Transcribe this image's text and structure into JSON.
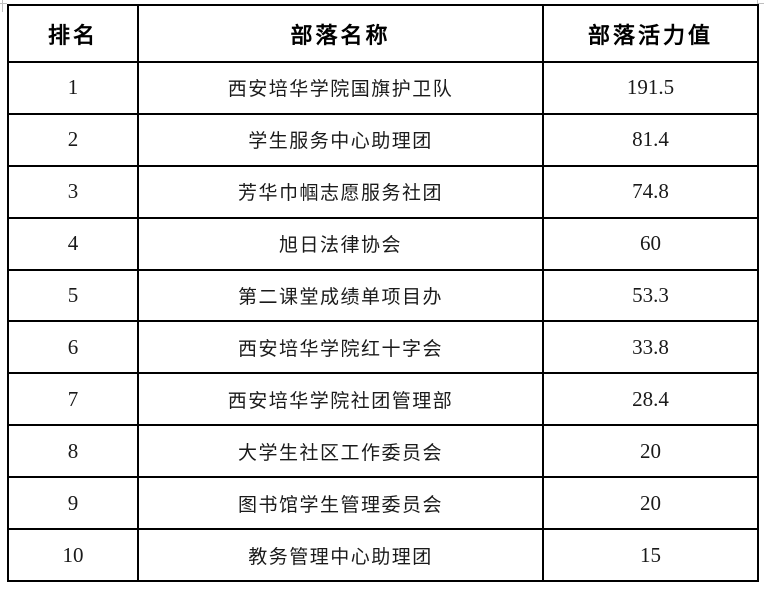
{
  "table": {
    "columns": [
      {
        "label": "排名"
      },
      {
        "label": "部落名称"
      },
      {
        "label": "部落活力值"
      }
    ],
    "rows": [
      {
        "rank": "1",
        "name": "西安培华学院国旗护卫队",
        "score": "191.5"
      },
      {
        "rank": "2",
        "name": "学生服务中心助理团",
        "score": "81.4"
      },
      {
        "rank": "3",
        "name": "芳华巾帼志愿服务社团",
        "score": "74.8"
      },
      {
        "rank": "4",
        "name": "旭日法律协会",
        "score": "60"
      },
      {
        "rank": "5",
        "name": "第二课堂成绩单项目办",
        "score": "53.3"
      },
      {
        "rank": "6",
        "name": "西安培华学院红十字会",
        "score": "33.8"
      },
      {
        "rank": "7",
        "name": "西安培华学院社团管理部",
        "score": "28.4"
      },
      {
        "rank": "8",
        "name": "大学生社区工作委员会",
        "score": "20"
      },
      {
        "rank": "9",
        "name": "图书馆学生管理委员会",
        "score": "20"
      },
      {
        "rank": "10",
        "name": "教务管理中心助理团",
        "score": "15"
      }
    ],
    "colors": {
      "border": "#000000",
      "header_text": "#000000",
      "body_text": "#1a1a1a",
      "background": "#ffffff",
      "crop_artifact": "#bfbfbf"
    }
  }
}
